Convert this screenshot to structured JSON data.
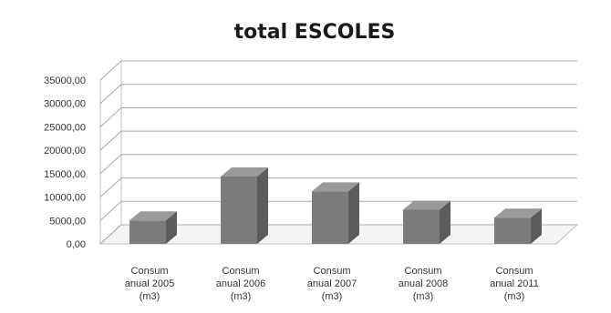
{
  "chart_data": {
    "type": "bar",
    "title": "total ESCOLES",
    "categories": [
      [
        "Consum",
        "anual 2005",
        "(m3)"
      ],
      [
        "Consum",
        "anual 2006",
        "(m3)"
      ],
      [
        "Consum",
        "anual 2007",
        "(m3)"
      ],
      [
        "Consum",
        "anual 2008",
        "(m3)"
      ],
      [
        "Consum",
        "anual 2011",
        "(m3)"
      ]
    ],
    "values": [
      5000,
      14400,
      11200,
      7300,
      5600
    ],
    "ylim": [
      0,
      35000
    ],
    "yticks": [
      "0,00",
      "5000,00",
      "10000,00",
      "15000,00",
      "20000,00",
      "25000,00",
      "30000,00",
      "35000,00"
    ],
    "grid": true,
    "legend": "none",
    "bar_color": "#7b7b7b"
  }
}
